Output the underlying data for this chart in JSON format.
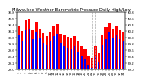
{
  "title": "Milwaukee Weather Barometric Pressure Daily High/Low",
  "background_color": "#ffffff",
  "high_color": "#ff0000",
  "low_color": "#0000ff",
  "ylim": [
    29.0,
    30.8
  ],
  "yticks": [
    29.0,
    29.2,
    29.4,
    29.6,
    29.8,
    30.0,
    30.2,
    30.4,
    30.6,
    30.8
  ],
  "ytick_labels": [
    "29.0",
    "29.2",
    "29.4",
    "29.6",
    "29.8",
    "30.0",
    "30.2",
    "30.4",
    "30.6",
    "30.8"
  ],
  "days": [
    1,
    2,
    3,
    4,
    5,
    6,
    7,
    8,
    9,
    10,
    11,
    12,
    13,
    14,
    15,
    16,
    17,
    18,
    19,
    20,
    21,
    22,
    23,
    24,
    25,
    26,
    27,
    28,
    29,
    30,
    31
  ],
  "highs": [
    30.38,
    30.2,
    30.55,
    30.58,
    30.25,
    30.48,
    30.28,
    30.15,
    30.05,
    30.18,
    30.35,
    30.42,
    30.12,
    30.08,
    30.02,
    29.98,
    30.05,
    29.88,
    29.72,
    29.62,
    29.42,
    29.35,
    29.72,
    29.52,
    30.08,
    30.32,
    30.45,
    30.28,
    30.35,
    30.22,
    30.18
  ],
  "lows": [
    30.08,
    29.88,
    30.22,
    30.28,
    29.95,
    30.18,
    29.98,
    29.82,
    29.75,
    29.88,
    30.05,
    30.12,
    29.82,
    29.72,
    29.68,
    29.62,
    29.72,
    29.55,
    29.42,
    29.32,
    29.12,
    29.05,
    29.42,
    29.22,
    29.78,
    29.95,
    30.18,
    29.98,
    30.08,
    29.95,
    29.88
  ],
  "dashed_day_indices": [
    21,
    22,
    23
  ],
  "title_fontsize": 3.8,
  "tick_fontsize": 2.8
}
